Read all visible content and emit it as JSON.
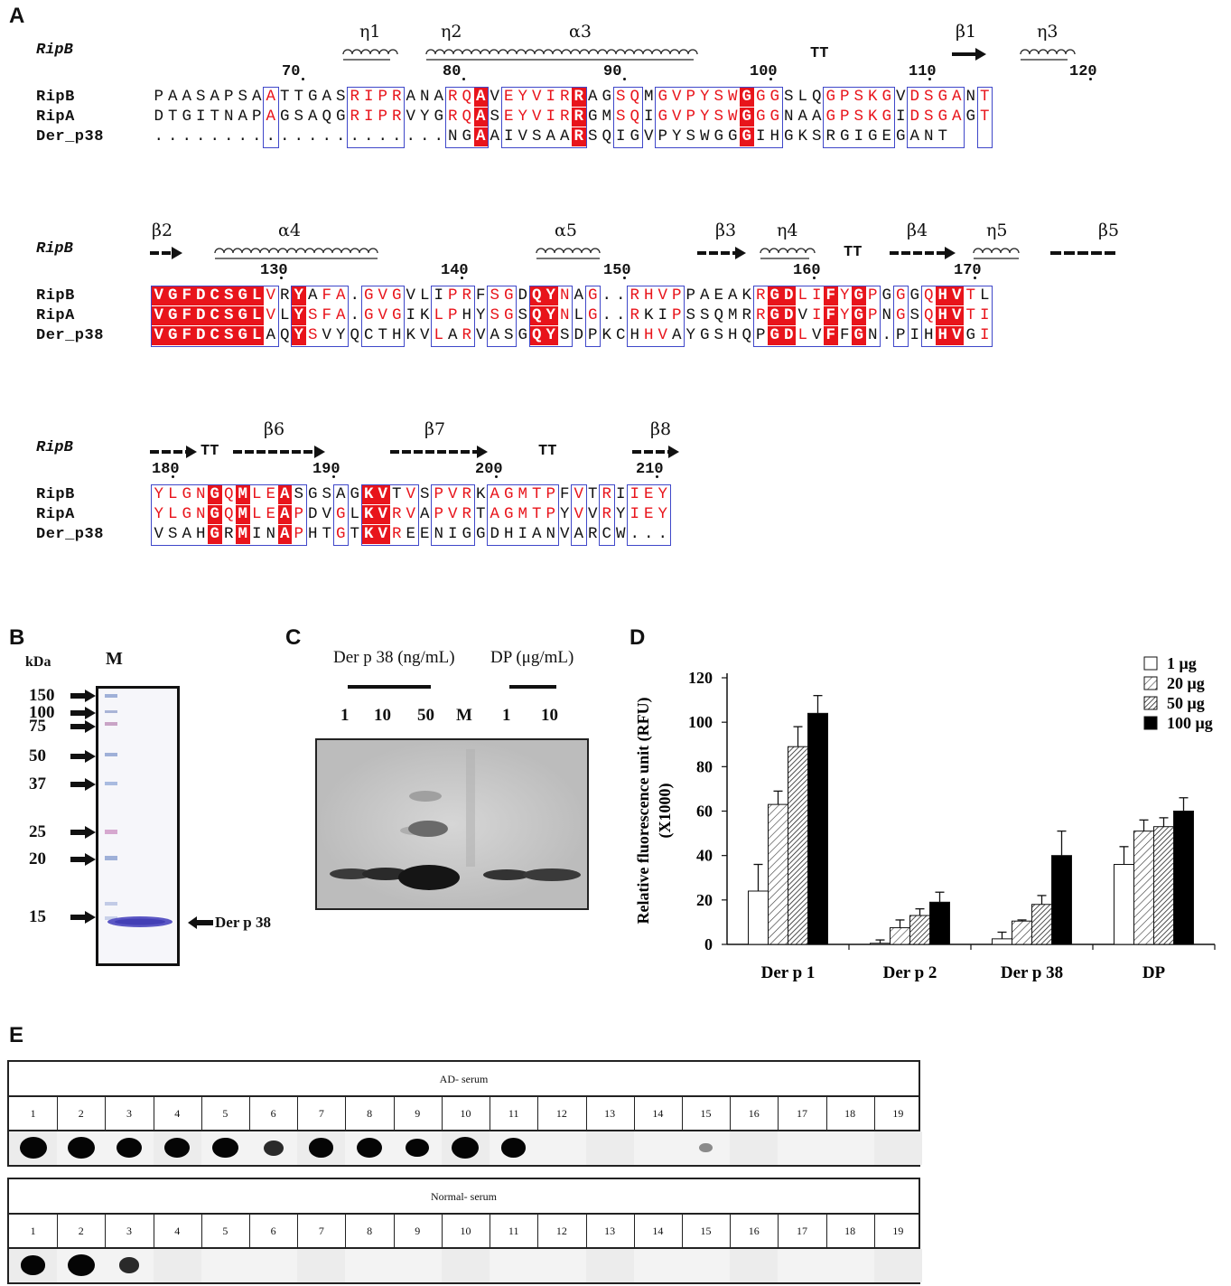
{
  "panels": {
    "a": "A",
    "b": "B",
    "c": "C",
    "d": "D",
    "e": "E"
  },
  "alignment": {
    "ref_label": "RipB",
    "blocks": [
      {
        "ticks": [
          "70",
          "80",
          "90",
          "100",
          "110",
          "120"
        ],
        "ss": [
          "η1",
          "η2",
          "α3",
          "TT",
          "β1",
          "η3"
        ],
        "rows": [
          {
            "name": "RipB",
            "seq": "PAASAPSAATTGASRIPRANARQAVEYVIRRAGSQMGVPYSWGGGSLQGPSKGVDSGANT"
          },
          {
            "name": "RipA",
            "seq": "DTGITNAPAGSAQGRIPRVYGRQASEYVIRRGMSQIGVPYSWGGGNAAGPSKGIDSGAGT"
          },
          {
            "name": "Der_p38",
            "seq": ".....................NGAAIVSAARSQIGVPYSWGGGIHGKSRGIGEGANT"
          }
        ]
      },
      {
        "ticks": [
          "130",
          "140",
          "150",
          "160",
          "170"
        ],
        "ss": [
          "β2",
          "α4",
          "α5",
          "β3",
          "η4",
          "TT",
          "β4",
          "η5",
          "β5"
        ],
        "rows": [
          {
            "name": "RipB",
            "seq": "VGFDCSGLVRYAFA.GVGVLIPRFSGDQYNAG..RHVPPAEAKRGDLIFYGPGGGQHVTL"
          },
          {
            "name": "RipA",
            "seq": "VGFDCSGLVLYSFA.GVGIKLPHYSGSQYNLG..RKIPSSQMRRGDVIFYGPNGSQHVTI"
          },
          {
            "name": "Der_p38",
            "seq": "VGFDCSGLAQYSVYQCTHKVLARVASGQYSDPKCHHVAYGSHQPGDLVFFGN.PIHHVGI"
          }
        ]
      },
      {
        "ticks": [
          "180",
          "190",
          "200",
          "210"
        ],
        "ss": [
          "TT",
          "β6",
          "β7",
          "TT",
          "β8"
        ],
        "rows": [
          {
            "name": "RipB",
            "seq": "YLGNGQMLEASGSAGKVTVSPVRKAGMTPFVTRIIEY"
          },
          {
            "name": "RipA",
            "seq": "YLGNGQMLEAPDVGLKVRVAPVRTAGMTPYVVRYIEY"
          },
          {
            "name": "Der_p38",
            "seq": "VSAHGRMINAPHTGTKVREENIGGDHIANVARCW..."
          }
        ]
      }
    ]
  },
  "gel_b": {
    "unit": "kDa",
    "lane_label": "M",
    "markers": [
      "150",
      "100",
      "75",
      "50",
      "37",
      "25",
      "20",
      "15"
    ],
    "band_label": "Der p 38"
  },
  "blot_c": {
    "group1": "Der p 38 (ng/mL)",
    "group2": "DP (μg/mL)",
    "lanes": [
      "1",
      "10",
      "50",
      "M",
      "1",
      "10"
    ]
  },
  "chart_data": {
    "type": "bar",
    "categories": [
      "Der p 1",
      "Der p 2",
      "Der p 38",
      "DP"
    ],
    "series": [
      {
        "name": "1 μg",
        "values": [
          24,
          0.5,
          2.5,
          36
        ],
        "errors": [
          12,
          1.5,
          3,
          8
        ]
      },
      {
        "name": "20 μg",
        "values": [
          63,
          7.5,
          10.5,
          51
        ],
        "errors": [
          6,
          3.5,
          0.5,
          5
        ]
      },
      {
        "name": "50 μg",
        "values": [
          89,
          13,
          18,
          53
        ],
        "errors": [
          9,
          3,
          4,
          4
        ]
      },
      {
        "name": "100 μg",
        "values": [
          104,
          19,
          40,
          60
        ],
        "errors": [
          8,
          4.5,
          11,
          6
        ]
      }
    ],
    "ylabel": "Relative fluorescence unit (RFU)",
    "ylabel2": "(X1000)",
    "ylim": [
      0,
      120
    ],
    "yticks": [
      "0",
      "20",
      "40",
      "60",
      "80",
      "100",
      "120"
    ],
    "legend_position": "top-right",
    "colors": [
      "#ffffff",
      "hatch-light",
      "hatch-dense",
      "#000000"
    ]
  },
  "dot_blot_e": {
    "tables": [
      {
        "title": "AD- serum",
        "numbers": [
          "1",
          "2",
          "3",
          "4",
          "5",
          "6",
          "7",
          "8",
          "9",
          "10",
          "11",
          "12",
          "13",
          "14",
          "15",
          "16",
          "17",
          "18",
          "19"
        ],
        "dot_strength": [
          1,
          1,
          0.9,
          0.85,
          0.9,
          0.5,
          0.8,
          0.85,
          0.75,
          1,
          0.8,
          0,
          0,
          0,
          0.05,
          0,
          0,
          0,
          0
        ]
      },
      {
        "title": "Normal- serum",
        "numbers": [
          "1",
          "2",
          "3",
          "4",
          "5",
          "6",
          "7",
          "8",
          "9",
          "10",
          "11",
          "12",
          "13",
          "14",
          "15",
          "16",
          "17",
          "18",
          "19"
        ],
        "dot_strength": [
          0.8,
          1,
          0.55,
          0,
          0,
          0,
          0,
          0,
          0,
          0,
          0,
          0,
          0,
          0,
          0,
          0,
          0,
          0,
          0
        ]
      }
    ]
  }
}
